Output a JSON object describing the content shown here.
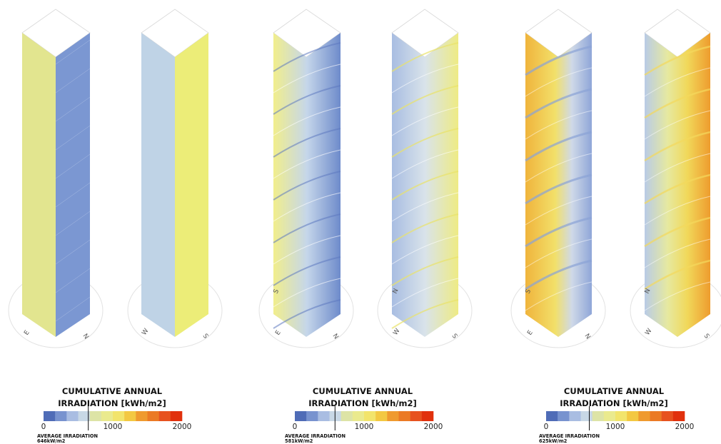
{
  "colors": {
    "scale": [
      "#4f6cb7",
      "#7893cf",
      "#a9bde2",
      "#c8d8e6",
      "#dde4a6",
      "#eaea8e",
      "#f2e46b",
      "#f3c842",
      "#ef9a2f",
      "#eb7a25",
      "#e7521f",
      "#e1310d"
    ]
  },
  "towers": [
    {
      "type": "prism",
      "left_face": "#e3e68f",
      "right_face": "#7b97d2",
      "dir_left": "E",
      "dir_right": "N"
    },
    {
      "type": "prism",
      "left_face": "#bfd3e6",
      "right_face": "#eced78",
      "dir_left": "W",
      "dir_right": "S"
    },
    {
      "type": "twist-light",
      "dir_left": "E",
      "dir_right": "N",
      "dir_top": "S"
    },
    {
      "type": "twist-light",
      "dir_left": "W",
      "dir_right": "S",
      "dir_top": "N"
    },
    {
      "type": "twist-warm",
      "dir_left": "E",
      "dir_right": "N",
      "dir_top": "S"
    },
    {
      "type": "twist-warm",
      "dir_left": "W",
      "dir_right": "S",
      "dir_top": "N"
    }
  ],
  "legends": [
    {
      "title_line1": "CUMULATIVE ANNUAL",
      "title_line2": "IRRADIATION [kWh/m2]",
      "tick_0": "0",
      "tick_1000": "1000",
      "tick_2000": "2000",
      "avg_label": "AVERAGE IRRADIATION",
      "avg_value": "646kW/m2",
      "avg_fraction": 0.323
    },
    {
      "title_line1": "CUMULATIVE ANNUAL",
      "title_line2": "IRRADIATION [kWh/m2]",
      "tick_0": "0",
      "tick_1000": "1000",
      "tick_2000": "2000",
      "avg_label": "AVERAGE IRRADIATION",
      "avg_value": "581kW/m2",
      "avg_fraction": 0.29
    },
    {
      "title_line1": "CUMULATIVE ANNUAL",
      "title_line2": "IRRADIATION [kWh/m2]",
      "tick_0": "0",
      "tick_1000": "1000",
      "tick_2000": "2000",
      "avg_label": "AVERAGE IRRADIATION",
      "avg_value": "625kW/m2",
      "avg_fraction": 0.312
    }
  ]
}
